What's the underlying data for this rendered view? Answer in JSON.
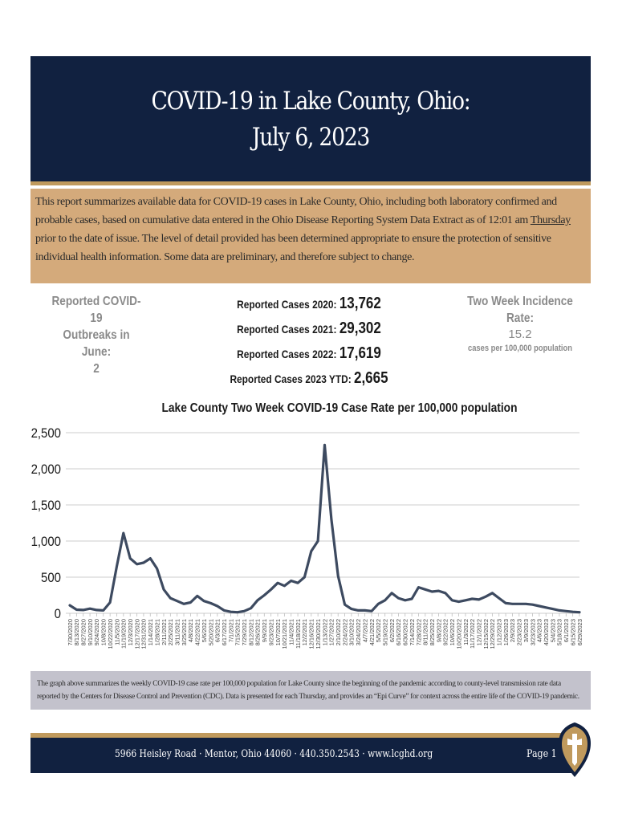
{
  "header": {
    "title_line1": "COVID-19 in Lake County, Ohio:",
    "title_line2": "July 6, 2023"
  },
  "intro": {
    "text_before": "This report summarizes available data for COVID-19 cases in Lake County, Ohio, including both laboratory confirmed and probable cases, based on cumulative data entered in the Ohio Disease Reporting System Data Extract as of 12:01 am ",
    "underlined": "Thursday",
    "text_after": " prior to the date of issue.  The level of detail provided has been determined appropriate to ensure the protection of sensitive individual health information.  Some data are preliminary, and therefore subject to change."
  },
  "stats": {
    "outbreaks_label_1": "Reported COVID-19",
    "outbreaks_label_2": "Outbreaks in June:",
    "outbreaks_value": "2",
    "cases": [
      {
        "label": "Reported Cases 2020: ",
        "value": "13,762"
      },
      {
        "label": "Reported Cases 2021: ",
        "value": "29,302"
      },
      {
        "label": "Reported Cases 2022: ",
        "value": "17,619"
      },
      {
        "label": "Reported Cases 2023 YTD: ",
        "value": "2,665"
      }
    ],
    "incidence_label": "Two Week Incidence Rate:",
    "incidence_value": "15.2",
    "incidence_unit": "cases per 100,000 population"
  },
  "chart_data": {
    "type": "line",
    "title": "Lake County Two Week COVID-19 Case Rate per 100,000 population",
    "xlabel": "",
    "ylabel": "",
    "ylim": [
      0,
      2500
    ],
    "yticks": [
      0,
      500,
      1000,
      1500,
      2000,
      2500
    ],
    "ytick_labels": [
      "0",
      "500",
      "1,000",
      "1,500",
      "2,000",
      "2,500"
    ],
    "grid": true,
    "line_color": "#3d4a60",
    "categories": [
      "7/30/2020",
      "8/13/2020",
      "8/27/2020",
      "9/10/2020",
      "9/24/2020",
      "10/8/2020",
      "10/22/2020",
      "11/5/2020",
      "11/19/2020",
      "12/3/2020",
      "12/17/2020",
      "12/31/2020",
      "1/14/2021",
      "1/28/2021",
      "2/11/2021",
      "2/25/2021",
      "3/11/2021",
      "3/25/2021",
      "4/8/2021",
      "4/22/2021",
      "5/6/2021",
      "5/20/2021",
      "6/3/2021",
      "6/17/2021",
      "7/1/2021",
      "7/15/2021",
      "7/29/2021",
      "8/12/2021",
      "8/26/2021",
      "9/9/2021",
      "9/23/2021",
      "10/7/2021",
      "10/21/2021",
      "11/4/2021",
      "11/18/2021",
      "12/2/2021",
      "12/16/2021",
      "12/30/2021",
      "1/13/2022",
      "1/27/2022",
      "2/10/2022",
      "2/24/2022",
      "3/10/2022",
      "3/24/2022",
      "4/7/2022",
      "4/21/2022",
      "5/5/2022",
      "5/19/2022",
      "6/2/2022",
      "6/16/2022",
      "6/30/2022",
      "7/14/2022",
      "7/28/2022",
      "8/11/2022",
      "8/25/2022",
      "9/8/2022",
      "9/22/2022",
      "10/6/2022",
      "10/20/2022",
      "11/3/2022",
      "11/17/2022",
      "12/1/2022",
      "12/15/2022",
      "12/29/2022",
      "1/12/2023",
      "1/26/2023",
      "2/9/2023",
      "2/23/2023",
      "3/9/2023",
      "3/23/2023",
      "4/6/2023",
      "4/20/2023",
      "5/4/2023",
      "5/18/2023",
      "6/1/2023",
      "6/15/2023",
      "6/29/2023"
    ],
    "values": [
      110,
      50,
      45,
      65,
      45,
      40,
      150,
      650,
      1110,
      760,
      680,
      700,
      760,
      620,
      330,
      210,
      170,
      130,
      150,
      240,
      170,
      140,
      100,
      40,
      20,
      15,
      30,
      70,
      180,
      250,
      330,
      420,
      380,
      450,
      420,
      500,
      860,
      1000,
      2330,
      1300,
      520,
      120,
      60,
      40,
      40,
      30,
      130,
      180,
      280,
      210,
      180,
      200,
      360,
      330,
      300,
      310,
      280,
      180,
      160,
      180,
      200,
      190,
      230,
      280,
      210,
      140,
      130,
      130,
      130,
      120,
      100,
      80,
      60,
      40,
      30,
      20,
      15
    ]
  },
  "caption": {
    "text": "The graph above summarizes the weekly COVID-19 case rate per 100,000 population for Lake County since the beginning of the pandemic according to county-level transmission rate data reported by the Centers for Disease Control and Prevention (CDC).  Data is presented for each Thursday, and provides an “Epi Curve” for context across the entire life of the COVID-19 pandemic."
  },
  "footer": {
    "address": "5966 Heisley Road · Mentor, Ohio 44060 · 440.350.2543 · www.lcghd.org",
    "page": "Page 1",
    "logo_icon": "shield-cross-icon",
    "colors": {
      "navy": "#112140",
      "gold": "#c09a5d"
    }
  }
}
